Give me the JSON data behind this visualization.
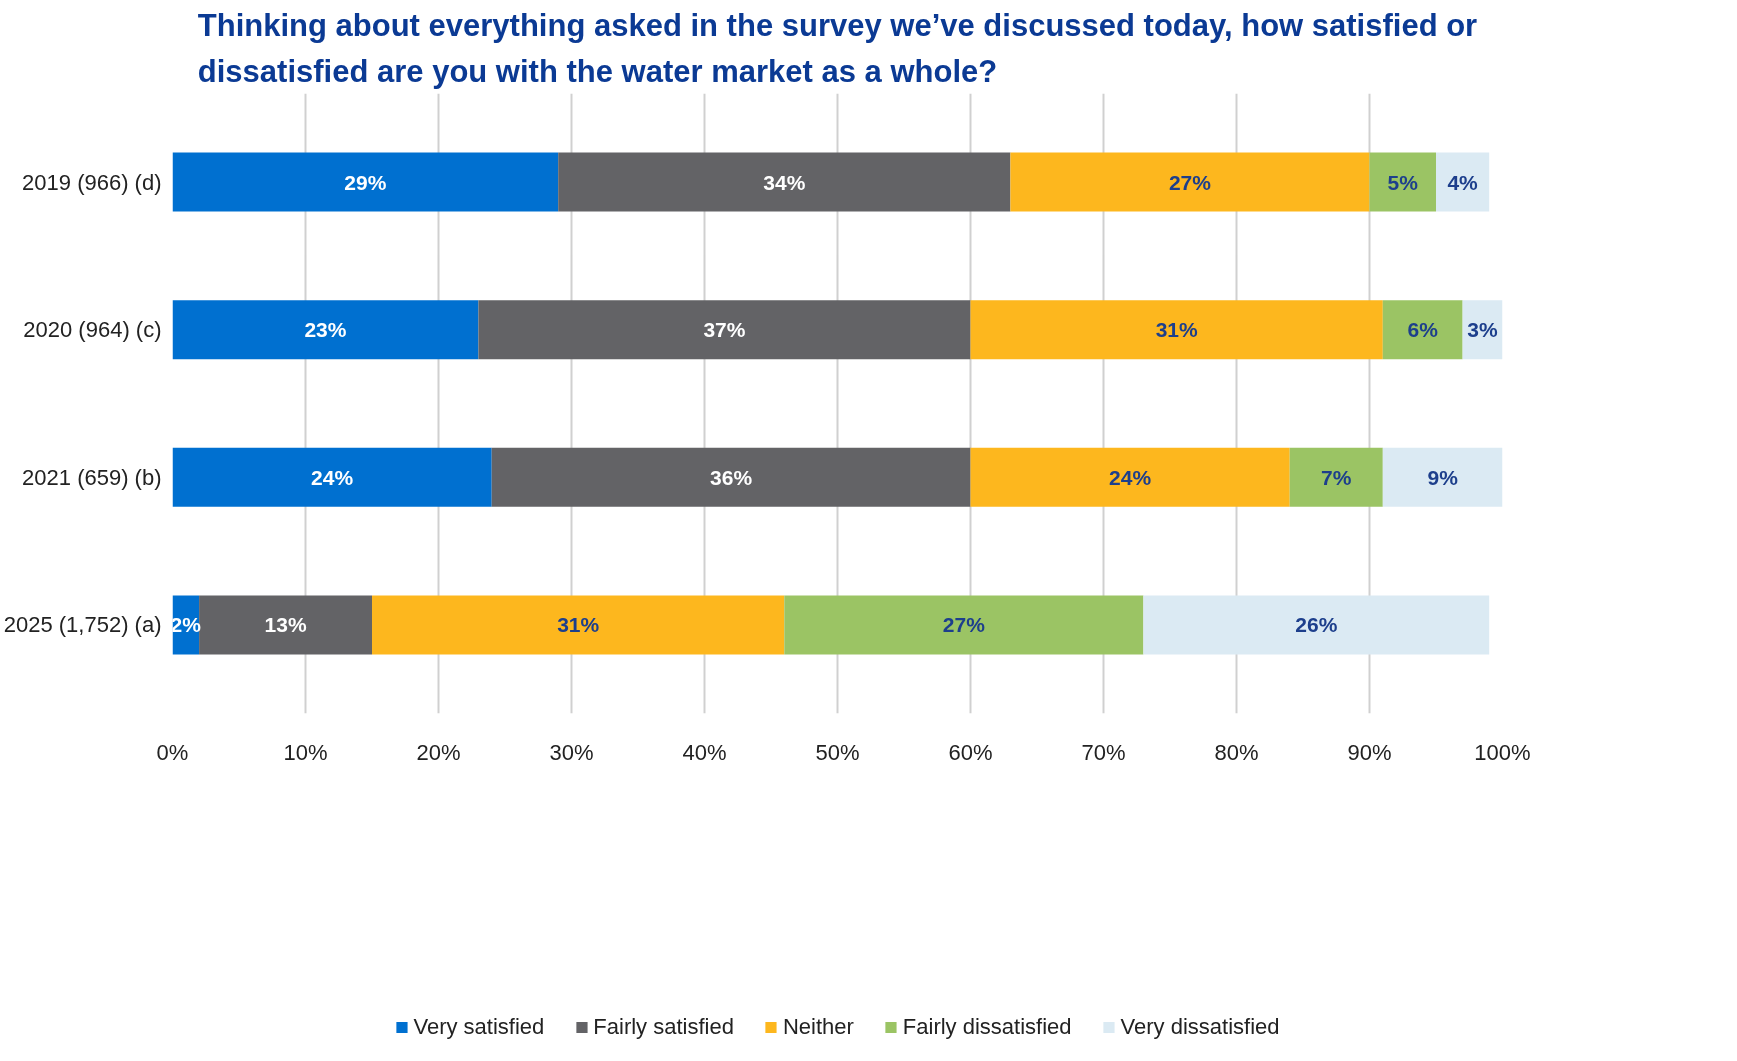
{
  "chart_data": {
    "type": "bar",
    "orientation": "horizontal",
    "stacked": true,
    "title": "Thinking about everything asked in the survey we’ve discussed today, how satisfied or dissatisfied are you with the water market as a whole?",
    "categories": [
      "2019 (966) (d)",
      "2020 (964) (c)",
      "2021 (659) (b)",
      "2025 (1,752) (a)"
    ],
    "series": [
      {
        "name": "Very satisfied",
        "color": "#0070d0",
        "values": [
          29,
          23,
          24,
          2
        ],
        "value_labels": [
          "29%",
          "23%",
          "24%",
          "2%"
        ]
      },
      {
        "name": "Fairly satisfied",
        "color": "#636366",
        "values": [
          34,
          37,
          36,
          13
        ],
        "value_labels": [
          "34%",
          "37%",
          "36%",
          "13%"
        ]
      },
      {
        "name": "Neither",
        "color": "#fdb71e",
        "values": [
          27,
          31,
          24,
          31
        ],
        "value_labels": [
          "27%",
          "31%",
          "24%",
          "31%"
        ]
      },
      {
        "name": "Fairly dissatisfied",
        "color": "#9bc464",
        "values": [
          5,
          6,
          7,
          27
        ],
        "value_labels": [
          "5%",
          "6%",
          "7%",
          "27%"
        ]
      },
      {
        "name": "Very dissatisfied",
        "color": "#dbeaf3",
        "values": [
          4,
          3,
          9,
          26
        ],
        "value_labels": [
          "4%",
          "3%",
          "9%",
          "26%"
        ]
      }
    ],
    "xlim": [
      0,
      100
    ],
    "xticks": [
      {
        "value": 0,
        "label": "0%"
      },
      {
        "value": 10,
        "label": "10%"
      },
      {
        "value": 20,
        "label": "20%"
      },
      {
        "value": 30,
        "label": "30%"
      },
      {
        "value": 40,
        "label": "40%"
      },
      {
        "value": 50,
        "label": "50%"
      },
      {
        "value": 60,
        "label": "60%"
      },
      {
        "value": 70,
        "label": "70%"
      },
      {
        "value": 80,
        "label": "80%"
      },
      {
        "value": 90,
        "label": "90%"
      },
      {
        "value": 100,
        "label": "100%"
      }
    ],
    "grid": "x",
    "legend": "bottom"
  }
}
